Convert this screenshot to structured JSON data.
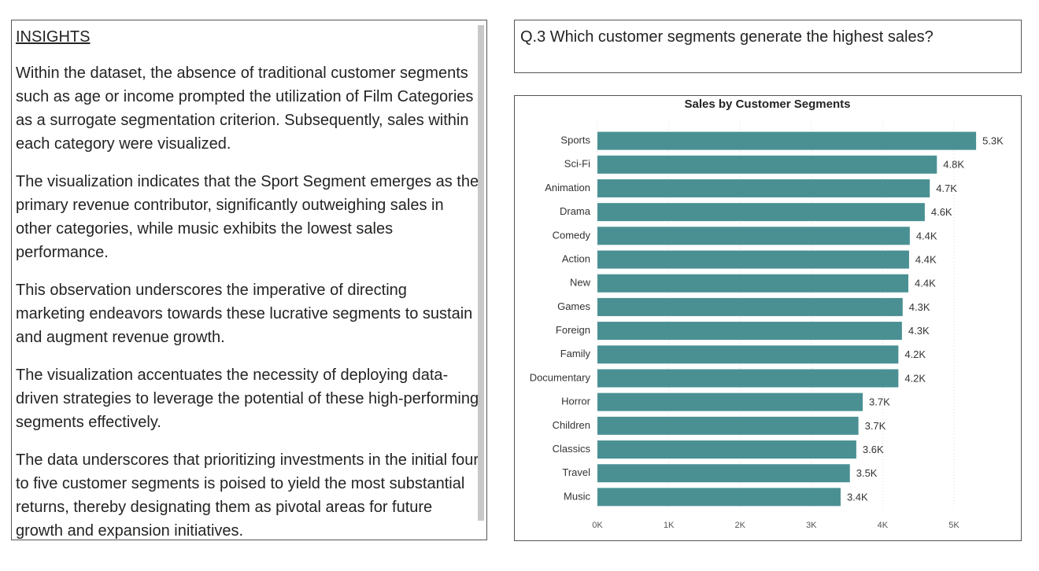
{
  "insights": {
    "heading": "INSIGHTS",
    "paragraphs": [
      "Within the dataset, the absence of traditional customer segments such as age or income prompted the utilization of Film Categories as a surrogate segmentation criterion. Subsequently, sales within each category were visualized.",
      "The visualization indicates that the Sport Segment emerges as the primary revenue contributor, significantly outweighing sales in other categories, while music exhibits the lowest sales performance.",
      "This observation underscores the imperative of directing marketing endeavors towards these lucrative segments to sustain and augment revenue growth.",
      "The visualization accentuates the necessity of deploying data-driven strategies to leverage the potential of these high-performing segments effectively.",
      "The data underscores that prioritizing investments in the initial four to five customer segments is poised to yield the most substantial returns, thereby designating them as pivotal areas for future growth and expansion initiatives."
    ]
  },
  "question": "Q.3 Which customer segments generate the highest sales?",
  "chart_data": {
    "type": "bar",
    "orientation": "horizontal",
    "title": "Sales by Customer Segments",
    "categories": [
      "Sports",
      "Sci-Fi",
      "Animation",
      "Drama",
      "Comedy",
      "Action",
      "New",
      "Games",
      "Foreign",
      "Family",
      "Documentary",
      "Horror",
      "Children",
      "Classics",
      "Travel",
      "Music"
    ],
    "values": [
      5310,
      4760,
      4660,
      4590,
      4380,
      4370,
      4360,
      4280,
      4270,
      4220,
      4220,
      3720,
      3660,
      3630,
      3540,
      3410
    ],
    "value_labels": [
      "5.3K",
      "4.8K",
      "4.7K",
      "4.6K",
      "4.4K",
      "4.4K",
      "4.4K",
      "4.3K",
      "4.3K",
      "4.2K",
      "4.2K",
      "3.7K",
      "3.7K",
      "3.6K",
      "3.5K",
      "3.4K"
    ],
    "color": "#4a9093",
    "xlim": [
      0,
      5800
    ],
    "xticks": [
      {
        "value": 0,
        "label": "0K"
      },
      {
        "value": 1000,
        "label": "1K"
      },
      {
        "value": 2000,
        "label": "2K"
      },
      {
        "value": 3000,
        "label": "3K"
      },
      {
        "value": 4000,
        "label": "4K"
      },
      {
        "value": 5000,
        "label": "5K"
      }
    ],
    "grid": true
  }
}
